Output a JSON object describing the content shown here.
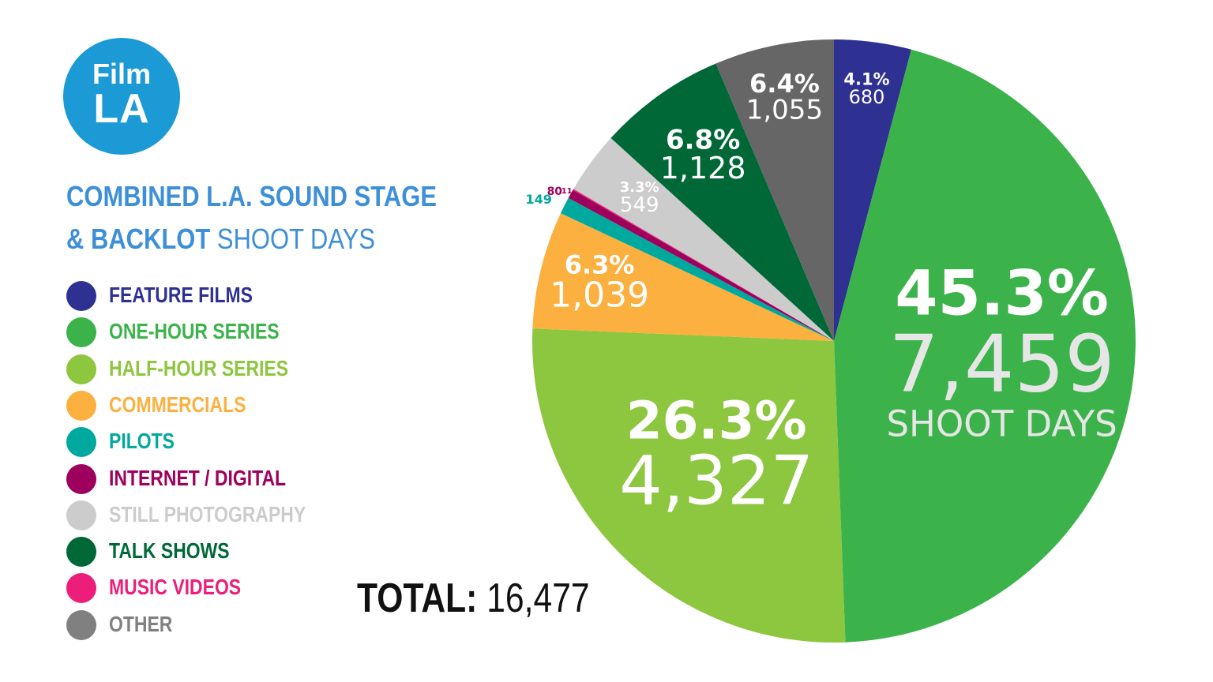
{
  "logo": {
    "line1": "Film",
    "line2": "LA"
  },
  "title": {
    "line1_bold": "COMBINED L.A. SOUND STAGE",
    "line2_bold": "& BACKLOT",
    "line2_light": "SHOOT DAYS"
  },
  "total": {
    "label": "TOTAL:",
    "value": "16,477"
  },
  "chart_data": {
    "type": "pie",
    "title": "COMBINED L.A. SOUND STAGE & BACKLOT SHOOT DAYS",
    "unit_label": "SHOOT DAYS",
    "total": 16477,
    "legend_placement": "left",
    "start_angle_deg": 0,
    "direction": "clockwise",
    "slices": [
      {
        "name": "FEATURE FILMS",
        "value": 680,
        "pct_label": "4.1%",
        "value_label": "680",
        "color": "#2e3192",
        "legend_color": "#2e3192",
        "pct_color": "#ffffff",
        "val_color": "#ffffff",
        "pct_size": 21,
        "val_size": 24
      },
      {
        "name": "ONE-HOUR SERIES",
        "value": 7459,
        "pct_label": "45.3%",
        "value_label": "7,459",
        "color": "#3bb34a",
        "legend_color": "#3bb34a",
        "pct_color": "#ffffff",
        "val_color": "#e6e6e6",
        "pct_size": 78,
        "val_size": 100,
        "show_unit": true
      },
      {
        "name": "HALF-HOUR SERIES",
        "value": 4327,
        "pct_label": "26.3%",
        "value_label": "4,327",
        "color": "#8dc63f",
        "legend_color": "#8dc63f",
        "pct_color": "#ffffff",
        "val_color": "#ffffff",
        "pct_size": 66,
        "val_size": 86
      },
      {
        "name": "COMMERCIALS",
        "value": 1039,
        "pct_label": "6.3%",
        "value_label": "1,039",
        "color": "#fbb040",
        "legend_color": "#fbb040",
        "pct_color": "#ffffff",
        "val_color": "#ffffff",
        "pct_size": 32,
        "val_size": 44
      },
      {
        "name": "PILOTS",
        "value": 149,
        "pct_label": "",
        "value_label": "149",
        "color": "#00a99d",
        "legend_color": "#00a99d",
        "pct_color": "#00a99d",
        "val_color": "#00a99d",
        "pct_size": 16,
        "val_size": 16,
        "outside": true
      },
      {
        "name": "INTERNET / DIGITAL",
        "value": 80,
        "pct_label": "",
        "value_label": "80",
        "color": "#9e005d",
        "legend_color": "#9e005d",
        "pct_color": "#9e005d",
        "val_color": "#9e005d",
        "pct_size": 14,
        "val_size": 14,
        "outside": true
      },
      {
        "name": "MUSIC VIDEOS",
        "value": 11,
        "pct_label": "",
        "value_label": "11",
        "color": "#ec2a7a",
        "legend_color": "#ec1e79",
        "pct_color": "#9e005d",
        "val_color": "#9e005d",
        "pct_size": 10,
        "val_size": 10,
        "outside": true
      },
      {
        "name": "STILL PHOTOGRAPHY",
        "value": 549,
        "pct_label": "3.3%",
        "value_label": "549",
        "color": "#cccccc",
        "legend_color": "#cccccc",
        "pct_color": "#ffffff",
        "val_color": "#ffffff",
        "pct_size": 18,
        "val_size": 26
      },
      {
        "name": "TALK SHOWS",
        "value": 1128,
        "pct_label": "6.8%",
        "value_label": "1,128",
        "color": "#006837",
        "legend_color": "#006837",
        "pct_color": "#ffffff",
        "val_color": "#ffffff",
        "pct_size": 34,
        "val_size": 38
      },
      {
        "name": "OTHER",
        "value": 1055,
        "pct_label": "6.4%",
        "value_label": "1,055",
        "color": "#666666",
        "legend_color": "#808080",
        "pct_color": "#ffffff",
        "val_color": "#ffffff",
        "pct_size": 32,
        "val_size": 34
      }
    ],
    "legend_order": [
      "FEATURE FILMS",
      "ONE-HOUR SERIES",
      "HALF-HOUR SERIES",
      "COMMERCIALS",
      "PILOTS",
      "INTERNET / DIGITAL",
      "STILL PHOTOGRAPHY",
      "TALK SHOWS",
      "MUSIC VIDEOS",
      "OTHER"
    ]
  }
}
